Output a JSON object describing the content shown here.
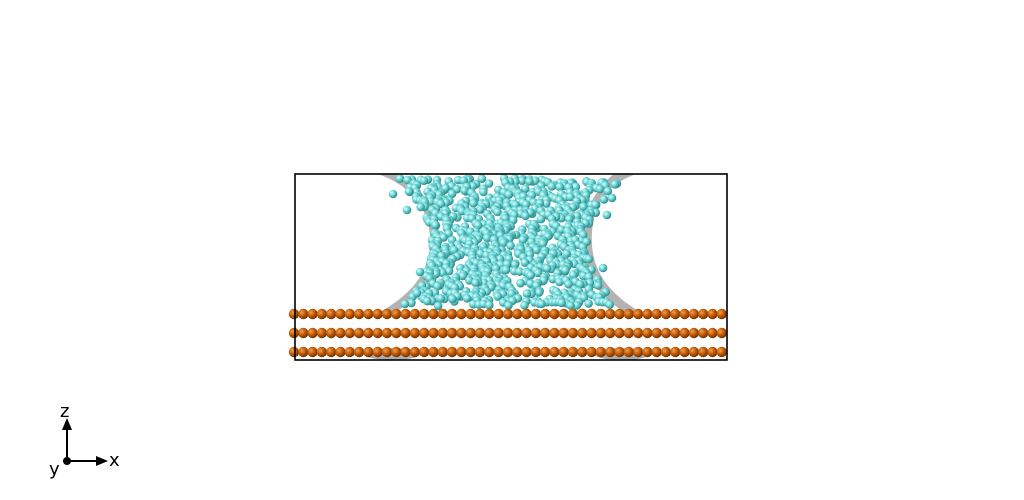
{
  "scene": {
    "background": "#ffffff",
    "box_color": "#000000",
    "liquid_color": "#5fd6d6",
    "substrate_color": "#c25a05",
    "surface_color": "#9a9a9a"
  },
  "axes": {
    "z_label": "z",
    "x_label": "x",
    "y_label": "y"
  }
}
